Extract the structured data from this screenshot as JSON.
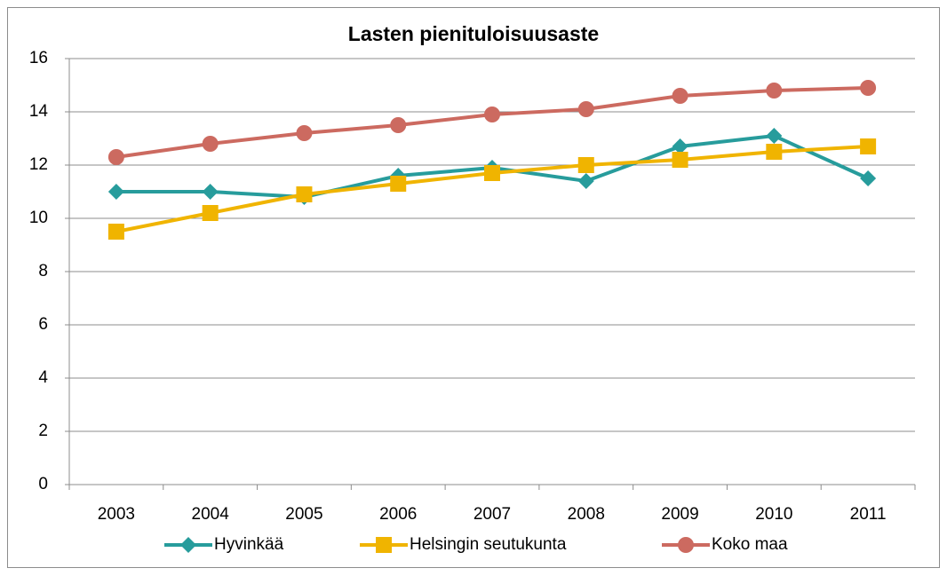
{
  "chart_data": {
    "type": "line",
    "title": "Lasten pienituloisuusaste",
    "categories": [
      "2003",
      "2004",
      "2005",
      "2006",
      "2007",
      "2008",
      "2009",
      "2010",
      "2011"
    ],
    "series": [
      {
        "name": "Hyvinkää",
        "color": "#279c9c",
        "marker": "diamond",
        "values": [
          11.0,
          11.0,
          10.8,
          11.6,
          11.9,
          11.4,
          12.7,
          13.1,
          11.5
        ]
      },
      {
        "name": "Helsingin seutukunta",
        "color": "#f0b400",
        "marker": "square",
        "values": [
          9.5,
          10.2,
          10.9,
          11.3,
          11.7,
          12.0,
          12.2,
          12.5,
          12.7
        ]
      },
      {
        "name": "Koko maa",
        "color": "#cc6a60",
        "marker": "circle",
        "values": [
          12.3,
          12.8,
          13.2,
          13.5,
          13.9,
          14.1,
          14.6,
          14.8,
          14.9
        ]
      }
    ],
    "ylim": [
      0,
      16
    ],
    "yticks": [
      0,
      2,
      4,
      6,
      8,
      10,
      12,
      14,
      16
    ],
    "grid": true,
    "legend": "bottom"
  }
}
